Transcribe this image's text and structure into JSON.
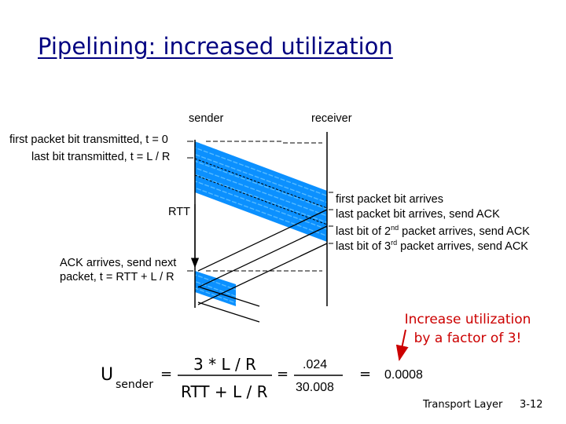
{
  "title": "Pipelining: increased utilization",
  "diagram": {
    "sender_label": "sender",
    "receiver_label": "receiver",
    "left_labels": {
      "first_transmitted": "first packet bit transmitted, t = 0",
      "last_transmitted": "last bit transmitted, t = L / R",
      "rtt": "RTT",
      "ack_arrives_line1": "ACK arrives, send next",
      "ack_arrives_line2": "packet, t = RTT + L / R"
    },
    "right_labels": {
      "first_arrives": "first packet bit arrives",
      "last_arrives": "last packet bit arrives, send ACK",
      "bit2_prefix": "last bit of 2",
      "bit2_sup": "nd",
      "bit2_suffix": " packet arrives, send ACK",
      "bit3_prefix": "last bit of 3",
      "bit3_sup": "rd",
      "bit3_suffix": " packet arrives, send ACK"
    },
    "colors": {
      "packet_fill": "#0b90ff",
      "packet_stripe": "#5fc0ff",
      "arrow_red": "#cc0000"
    }
  },
  "note": {
    "line1": "Increase utilization",
    "line2": "by a factor of 3!"
  },
  "formula": {
    "u": "U",
    "subscript": "sender",
    "eq": "=",
    "numerator": "3 * L / R",
    "denominator": "RTT + L / R",
    "eq2": "=",
    "num2": ".024",
    "den2": "30.008",
    "eq3": "=",
    "result": "0.0008"
  },
  "footer": {
    "chapter": "Transport Layer",
    "page": "3-12"
  }
}
